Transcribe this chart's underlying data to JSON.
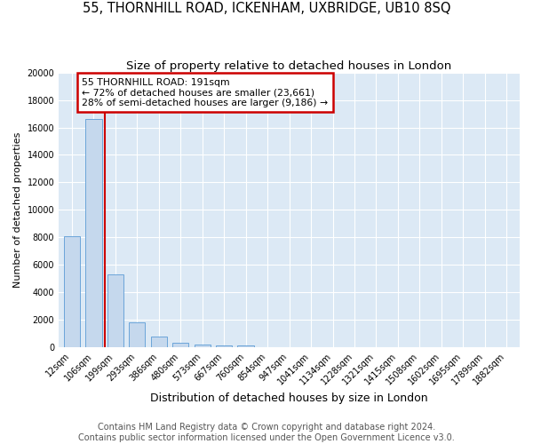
{
  "title1": "55, THORNHILL ROAD, ICKENHAM, UXBRIDGE, UB10 8SQ",
  "title2": "Size of property relative to detached houses in London",
  "xlabel": "Distribution of detached houses by size in London",
  "ylabel": "Number of detached properties",
  "categories": [
    "12sqm",
    "106sqm",
    "199sqm",
    "293sqm",
    "386sqm",
    "480sqm",
    "573sqm",
    "667sqm",
    "760sqm",
    "854sqm",
    "947sqm",
    "1041sqm",
    "1134sqm",
    "1228sqm",
    "1321sqm",
    "1415sqm",
    "1508sqm",
    "1602sqm",
    "1695sqm",
    "1789sqm",
    "1882sqm"
  ],
  "bar_heights": [
    8100,
    16600,
    5300,
    1800,
    750,
    320,
    200,
    150,
    130,
    0,
    0,
    0,
    0,
    0,
    0,
    0,
    0,
    0,
    0,
    0,
    0
  ],
  "bar_color": "#c5d8ed",
  "bar_edge_color": "#5b9bd5",
  "redline_color": "#cc0000",
  "annotation_line1": "55 THORNHILL ROAD: 191sqm",
  "annotation_line2": "← 72% of detached houses are smaller (23,661)",
  "annotation_line3": "28% of semi-detached houses are larger (9,186) →",
  "annotation_box_color": "#cc0000",
  "ylim": [
    0,
    20000
  ],
  "yticks": [
    0,
    2000,
    4000,
    6000,
    8000,
    10000,
    12000,
    14000,
    16000,
    18000,
    20000
  ],
  "footer_text": "Contains HM Land Registry data © Crown copyright and database right 2024.\nContains public sector information licensed under the Open Government Licence v3.0.",
  "plot_bg_color": "#dce9f5",
  "title1_fontsize": 10.5,
  "title2_fontsize": 9.5,
  "xlabel_fontsize": 9,
  "ylabel_fontsize": 8,
  "tick_fontsize": 7,
  "footer_fontsize": 7
}
